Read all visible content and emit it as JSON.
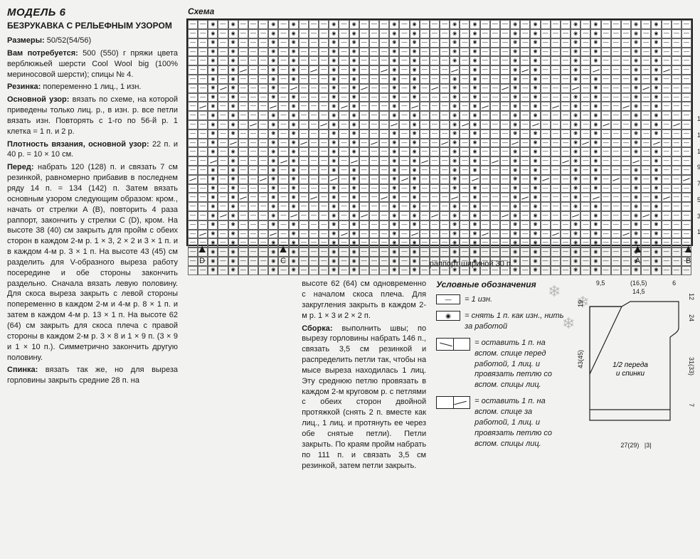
{
  "header": {
    "model": "МОДЕЛЬ 6",
    "subtitle": "БЕЗРУКАВКА С РЕЛЬЕФНЫМ УЗОРОМ",
    "schema_label": "Схема"
  },
  "text": {
    "sizes_label": "Размеры:",
    "sizes": " 50/52(54/56)",
    "needs_label": "Вам потребуется:",
    "needs": " 500 (550) г пряжи цвета верблюжьей шерсти Cool Wool big (100% мериносовой шерсти); спицы № 4.",
    "rib_label": "Резинка:",
    "rib": " попеременно 1 лиц., 1 изн.",
    "main_label": "Основной узор:",
    "main": " вязать по схеме, на которой приведены только лиц. р., в изн. р. все петли вязать изн. Повторять с 1-го по 56-й р. 1 клетка = 1 п. и 2 р.",
    "gauge_label": "Плотность вязания, основной узор:",
    "gauge": " 22 п. и 40 р. = 10 × 10 см.",
    "front_label": "Перед:",
    "front": " набрать 120 (128) п. и связать 7 см резинкой, равномерно прибавив в последнем ряду 14 п. = 134 (142) п. Затем вязать основным узором следующим образом: кром., начать от стрелки A (B), повторить 4 раза раппорт, закончить у стрелки C (D), кром. На высоте 38 (40) см закрыть для пройм с обеих сторон в каждом 2-м р. 1 × 3, 2 × 2 и 3 × 1 п. и в каждом 4-м р. 3 × 1 п. На высоте 43 (45) см разделить для V-образного выреза работу посередине и обе стороны закончить раздельно. Сначала вязать левую половину. Для скоса выреза закрыть с левой стороны попеременно в каждом 2-м и 4-м р. 8 × 1 п. и затем в каждом 4-м р. 13 × 1 п. На высоте 62 (64) см закрыть для скоса плеча с правой стороны в каждом 2-м р. 3 × 8 и 1 × 9 п. (3 × 9 и 1 × 10 п.). Симметрично закончить другую половину.",
    "back_label": "Спинка:",
    "back": " вязать так же, но для выреза горловины закрыть средние 28 п. на",
    "front2": "высоте 62 (64) см одновременно с началом скоса плеча. Для закругления закрыть в каждом 2-м р. 1 × 3 и 2 × 2 п.",
    "assembly_label": "Сборка:",
    "assembly": " выполнить швы; по вырезу горловины набрать 146 п., связать 3,5 см резинкой и распределить петли так, чтобы на мысе выреза находилась 1 лиц. Эту среднюю петлю провязать в каждом 2-м круговом р. с петлями с обеих сторон двойной протяжкой (снять 2 п. вместе как лиц., 1 лиц. и протянуть ее через обе снятые петли). Петли закрыть. По краям пройм набрать по 111 п. и связать 3,5 см резинкой, затем петли закрыть."
  },
  "chart": {
    "cols": 50,
    "rows": 28,
    "row_numbers": [
      "15",
      "13",
      "11",
      "9",
      "7",
      "5",
      "3",
      "1"
    ],
    "arrows": [
      {
        "label": "D",
        "left_pct": 2
      },
      {
        "label": "C",
        "left_pct": 18
      },
      {
        "label": "A",
        "left_pct": 88
      },
      {
        "label": "B",
        "left_pct": 98
      }
    ],
    "rapport_label": "раппорт шириной 30 п.",
    "rapport_left_pct": 48,
    "pattern_period": 6,
    "dash_offset": 0,
    "circ_offsets": [
      2,
      4
    ]
  },
  "legend": {
    "title": "Условные обозначения",
    "items": [
      {
        "sym": "dash",
        "text": "= 1 изн."
      },
      {
        "sym": "circ",
        "text": "= снять 1 п. как изн., нить за работой"
      },
      {
        "sym": "diag_l",
        "text": "= оставить 1 п. на вспом. спице перед работой, 1 лиц. и провязать петлю со вспом. спицы лиц."
      },
      {
        "sym": "diag_r",
        "text": "= оставить 1 п. на вспом. спице за работой, 1 лиц. и провязать петлю со вспом. спицы лиц."
      }
    ]
  },
  "schematic": {
    "label": "1/2 переда и спинки",
    "top": {
      "a": "9,5",
      "b": "14,5",
      "b2": "(16,5)",
      "c": "6"
    },
    "side": {
      "h1": "19",
      "h2": "43(45)",
      "r1": "12",
      "r2": "24",
      "r3": "31(33)",
      "r4": "7"
    },
    "bottom": {
      "w": "27(29)",
      "pad": "|3|"
    }
  },
  "colors": {
    "text": "#1a1a1a",
    "bg": "#f2f2f0",
    "line": "#222222",
    "grid": "#666666"
  }
}
